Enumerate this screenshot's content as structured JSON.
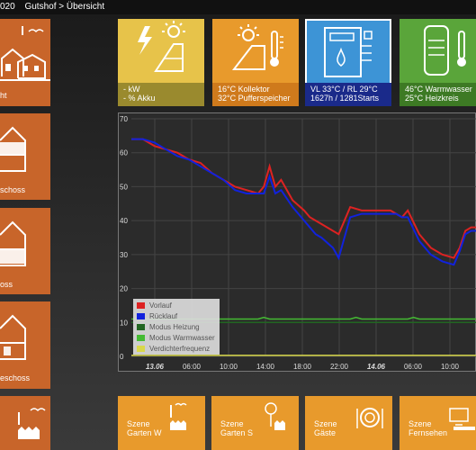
{
  "breadcrumb": {
    "year_fragment": "020",
    "path": "Gutshof > Übersicht"
  },
  "side_tiles": [
    {
      "label": "ht"
    },
    {
      "label": "schoss"
    },
    {
      "label": "oss"
    },
    {
      "label": "eschoss"
    },
    {
      "label": ""
    }
  ],
  "top_tiles": [
    {
      "line1": "- kW",
      "line2": "- % Akku",
      "color": "#e7c34a",
      "band": "#9a8a2e"
    },
    {
      "line1": "16°C Kollektor",
      "line2": "32°C Pufferspeicher",
      "color": "#e89a2c",
      "band": "#cf7a1c"
    },
    {
      "line1": "VL 33°C / RL 29°C",
      "line2": "1627h / 1281Starts",
      "color": "#3d94d6",
      "band": "#1a2a8a"
    },
    {
      "line1": "46°C Warmwasser",
      "line2": "25°C Heizkreis",
      "color": "#5aa53a",
      "band": "#3d7a24"
    }
  ],
  "bottom_tiles": [
    {
      "line1": "Szene",
      "line2": "Garten W"
    },
    {
      "line1": "Szene",
      "line2": "Garten S"
    },
    {
      "line1": "Szene",
      "line2": "Gäste"
    },
    {
      "line1": "Szene",
      "line2": "Fernsehen"
    }
  ],
  "chart_data": {
    "type": "line",
    "ylim": [
      0,
      70
    ],
    "yticks": [
      0,
      10,
      20,
      30,
      40,
      50,
      60,
      70
    ],
    "xticks": [
      "13.06",
      "06:00",
      "10:00",
      "14:00",
      "18:00",
      "22:00",
      "14.06",
      "06:00",
      "10:00"
    ],
    "xticks_bold": [
      "13.06",
      "14.06"
    ],
    "legend": [
      "Vorlauf",
      "Rücklauf",
      "Modus Heizung",
      "Modus Warmwasser",
      "Verdichterfrequenz"
    ],
    "legend_colors": [
      "#dd2222",
      "#1122dd",
      "#226622",
      "#44bb33",
      "#d8d84a"
    ],
    "series": [
      {
        "name": "Vorlauf",
        "color": "#dd2222",
        "x": [
          0,
          2,
          4,
          6,
          8,
          10,
          12,
          14,
          16,
          18,
          20,
          22,
          23,
          24,
          25,
          26,
          28,
          30,
          31,
          32,
          33,
          35,
          36,
          38,
          40,
          42,
          44,
          45,
          46,
          47,
          48,
          50,
          52,
          54,
          56,
          57,
          58,
          59,
          60
        ],
        "y": [
          64,
          64,
          62,
          61,
          60,
          58,
          57,
          54,
          52,
          50,
          49,
          48,
          50,
          56,
          50,
          52,
          46,
          43,
          41,
          40,
          39,
          37,
          36,
          44,
          43,
          43,
          43,
          43,
          42,
          41,
          43,
          36,
          32,
          30,
          29,
          32,
          37,
          38,
          38
        ]
      },
      {
        "name": "Rücklauf",
        "color": "#1122dd",
        "x": [
          0,
          2,
          4,
          6,
          8,
          10,
          12,
          14,
          16,
          18,
          20,
          22,
          23,
          24,
          25,
          26,
          28,
          30,
          31,
          32,
          33,
          35,
          36,
          38,
          40,
          42,
          44,
          45,
          46,
          47,
          48,
          50,
          52,
          54,
          56,
          57,
          58,
          59,
          60
        ],
        "y": [
          64,
          64,
          63,
          61,
          59,
          58,
          56,
          54,
          52,
          49,
          48,
          48,
          48,
          53,
          48,
          49,
          44,
          40,
          38,
          36,
          35,
          32,
          29,
          41,
          42,
          42,
          42,
          42,
          42,
          41,
          41,
          34,
          30,
          28,
          27,
          31,
          36,
          37,
          37
        ]
      },
      {
        "name": "Modus Heizung",
        "color": "#226622",
        "x": [
          0,
          60
        ],
        "y": [
          10,
          10
        ]
      },
      {
        "name": "Modus Warmwasser",
        "color": "#44bb33",
        "x": [
          0,
          22,
          23,
          24,
          38,
          39,
          40,
          48,
          49,
          50,
          60
        ],
        "y": [
          11,
          11,
          11.5,
          11,
          11,
          11.5,
          11,
          11,
          11.5,
          11,
          11
        ]
      },
      {
        "name": "Verdichterfrequenz",
        "color": "#d8d84a",
        "x": [
          0,
          60
        ],
        "y": [
          0.3,
          0.3
        ]
      }
    ]
  }
}
